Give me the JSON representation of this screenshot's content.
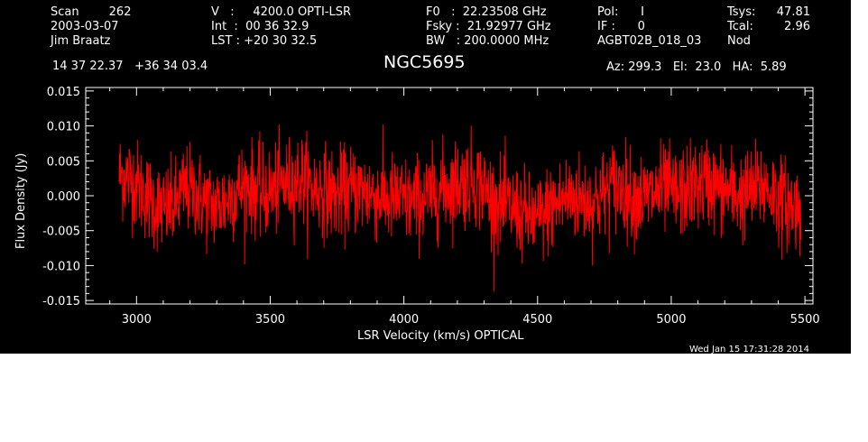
{
  "header": {
    "col1": [
      "Scan        262",
      "2003-03-07",
      "Jim Braatz"
    ],
    "col2": [
      "V   :     4200.0 OPTI-LSR",
      "Int  :  00 36 32.9",
      "LST : +20 30 32.5"
    ],
    "col3": [
      "F0   :  22.23508 GHz",
      "Fsky :  21.92977 GHz",
      "BW   : 200.0000 MHz"
    ],
    "col4": [
      "Pol:      I",
      "IF :      0",
      "AGBT02B_018_03"
    ],
    "col5": [
      "Tsys:",
      "Tcal:",
      "Nod"
    ],
    "col6": [
      "47.81",
      "2.96",
      ""
    ],
    "coords": "14 37 22.37   +36 34 03.4",
    "source": "NGC5695",
    "azelha": "Az: 299.3   El:  23.0   HA:  5.89",
    "timestamp": "Wed Jan 15 17:31:28 2014"
  },
  "colors": {
    "background": "#000000",
    "axes": "#ffffff",
    "trace": "#ff0000"
  },
  "chart_data": {
    "type": "line",
    "title": "NGC5695",
    "xlabel": "LSR Velocity (km/s) OPTICAL",
    "ylabel": "Flux Density (Jy)",
    "xlim": [
      2810,
      5530
    ],
    "ylim": [
      -0.0155,
      0.0155
    ],
    "x_ticks": [
      3000,
      3500,
      4000,
      4500,
      5000,
      5500
    ],
    "x_tick_labels": [
      "3000",
      "3500",
      "4000",
      "4500",
      "5000",
      "5500"
    ],
    "y_ticks": [
      0.015,
      0.01,
      0.005,
      0.0,
      -0.005,
      -0.01,
      -0.015
    ],
    "y_tick_labels": [
      "0.015",
      "0.010",
      "0.005",
      "0.000",
      "-0.005",
      "-0.010",
      "-0.015"
    ],
    "series": [
      {
        "x": [
          2935,
          2980,
          3020,
          3060,
          3100,
          3140,
          3180,
          3220,
          3260,
          3300,
          3340,
          3380,
          3420,
          3460,
          3500,
          3540,
          3580,
          3620,
          3660,
          3700,
          3740,
          3780,
          3820,
          3860,
          3900,
          3940,
          3980,
          4020,
          4060,
          4100,
          4140,
          4180,
          4220,
          4260,
          4300,
          4340,
          4380,
          4420,
          4460,
          4500,
          4540,
          4580,
          4620,
          4660,
          4700,
          4740,
          4780,
          4820,
          4860,
          4900,
          4940,
          4980,
          5020,
          5060,
          5100,
          5140,
          5180,
          5220,
          5260,
          5300,
          5340,
          5380,
          5420,
          5460,
          5485
        ],
        "values": [
          0.003,
          0.0025,
          0.0008,
          -0.001,
          -0.002,
          -0.0015,
          0.001,
          0.0005,
          -0.001,
          -0.0015,
          -0.0005,
          0.001,
          0.0015,
          0.0005,
          0.0005,
          0.0015,
          0.002,
          0.0025,
          0.001,
          0.001,
          0.0,
          0.0005,
          0.001,
          0.0005,
          0.0,
          -0.0005,
          -0.0005,
          -0.001,
          -0.0005,
          0.0,
          0.001,
          0.0015,
          0.002,
          0.0025,
          0.001,
          -0.001,
          -0.0015,
          -0.002,
          -0.003,
          -0.0035,
          -0.002,
          -0.001,
          0.0,
          -0.0005,
          -0.001,
          0.0,
          0.0015,
          0.001,
          0.0,
          -0.0005,
          0.0005,
          0.001,
          0.0,
          0.001,
          0.0015,
          0.002,
          0.001,
          0.0005,
          0.0,
          0.0005,
          0.0015,
          0.0005,
          -0.001,
          -0.0015,
          -0.002
        ]
      }
    ]
  }
}
